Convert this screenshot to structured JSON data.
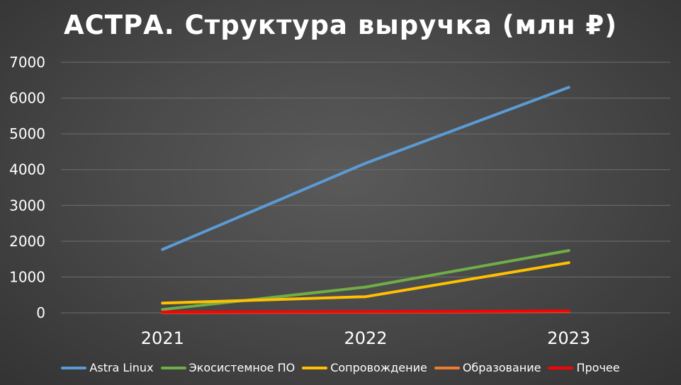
{
  "chart_data": {
    "type": "line",
    "title": "АСТРА. Структура выручка (млн ₽)",
    "xlabel": "",
    "ylabel": "",
    "categories": [
      "2021",
      "2022",
      "2023"
    ],
    "ylim": [
      0,
      7000
    ],
    "yticks": [
      "0",
      "1000",
      "2000",
      "3000",
      "4000",
      "5000",
      "6000",
      "7000"
    ],
    "grid": true,
    "legend_position": "bottom",
    "series": [
      {
        "name": "Astra Linux",
        "color": "#5b9bd5",
        "values": [
          1770,
          4180,
          6300
        ]
      },
      {
        "name": "Экосистемное ПО",
        "color": "#70ad47",
        "values": [
          90,
          720,
          1740
        ]
      },
      {
        "name": "Сопровождение",
        "color": "#ffc000",
        "values": [
          270,
          450,
          1400
        ]
      },
      {
        "name": "Образование",
        "color": "#ed7d31",
        "values": [
          10,
          20,
          40
        ]
      },
      {
        "name": "Прочее",
        "color": "#ff0000",
        "values": [
          20,
          30,
          50
        ]
      }
    ]
  }
}
